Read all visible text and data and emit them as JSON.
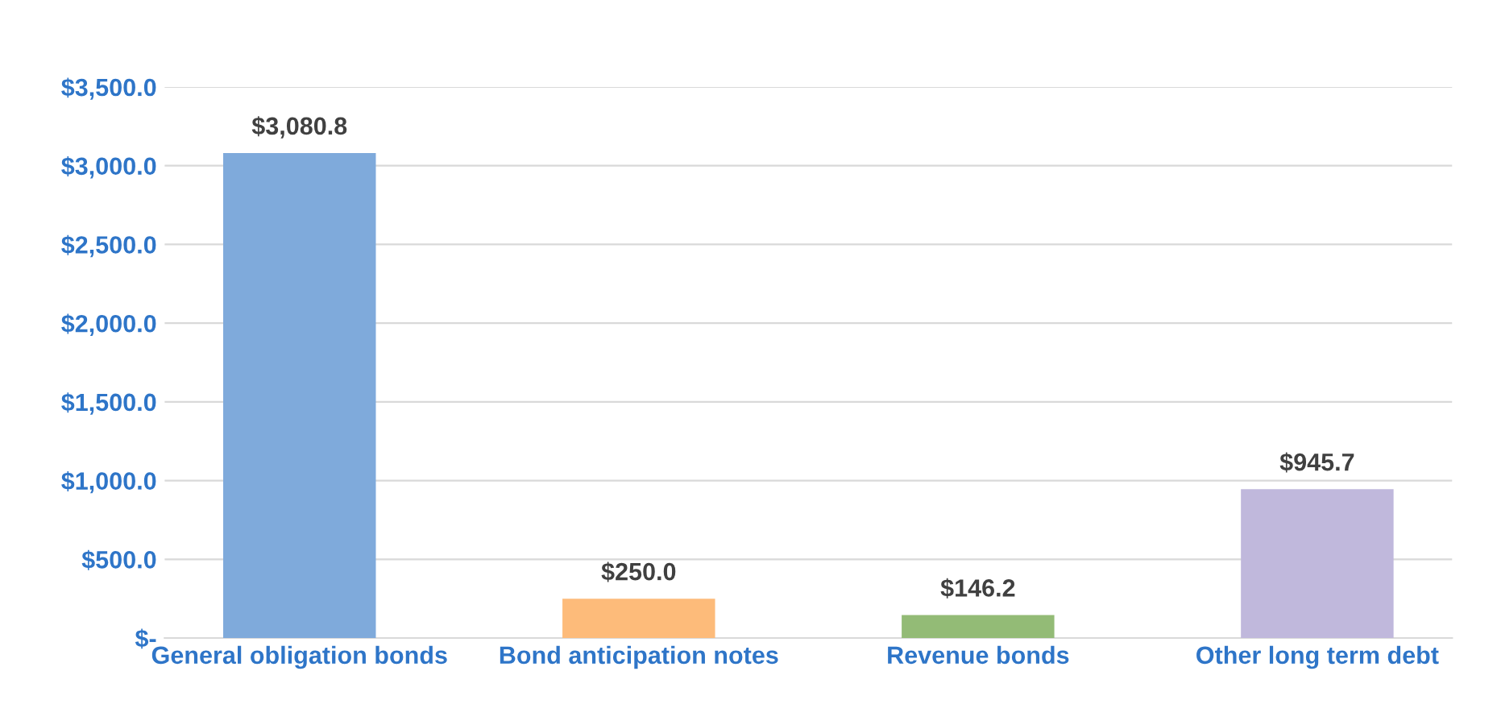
{
  "chart_data": {
    "type": "bar",
    "categories": [
      "General obligation bonds",
      "Bond anticipation notes",
      "Revenue bonds",
      "Other long term debt"
    ],
    "values": [
      3080.8,
      250.0,
      146.2,
      945.7
    ],
    "colors": [
      "#7faadb",
      "#fdbb7a",
      "#93bb76",
      "#c0b8dc"
    ],
    "value_labels": [
      "$3,080.8",
      "$250.0",
      "$146.2",
      "$945.7"
    ],
    "ylim": [
      0,
      3500
    ],
    "yticks": [
      {
        "value": 0,
        "label": "$-"
      },
      {
        "value": 500,
        "label": "$500.0"
      },
      {
        "value": 1000,
        "label": "$1,000.0"
      },
      {
        "value": 1500,
        "label": "$1,500.0"
      },
      {
        "value": 2000,
        "label": "$2,000.0"
      },
      {
        "value": 2500,
        "label": "$2,500.0"
      },
      {
        "value": 3000,
        "label": "$3,000.0"
      },
      {
        "value": 3500,
        "label": "$3,500.0"
      }
    ],
    "grid": "y"
  }
}
